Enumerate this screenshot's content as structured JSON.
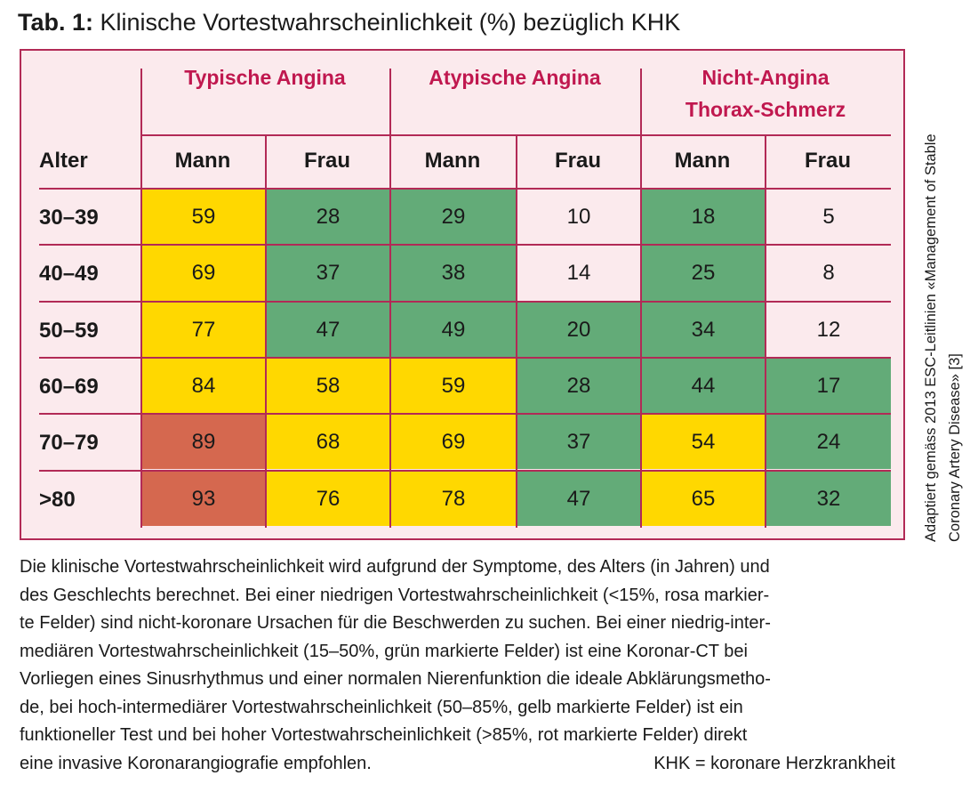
{
  "title": {
    "prefix": "Tab. 1:",
    "text": "Klinische Vortestwahrscheinlichkeit (%) bezüglich KHK"
  },
  "colors": {
    "low": "#fbeaed",
    "intermediate_low": "#63ab78",
    "intermediate_high": "#ffd800",
    "high": "#d5684f",
    "border": "#b22a56",
    "header_text": "#c0184f"
  },
  "table": {
    "groups": [
      {
        "label_line1": "Typische Angina",
        "label_line2": ""
      },
      {
        "label_line1": "Atypische Angina",
        "label_line2": ""
      },
      {
        "label_line1": "Nicht-Angina",
        "label_line2": "Thorax-Schmerz"
      }
    ],
    "row_header": "Alter",
    "columns": [
      "Mann",
      "Frau",
      "Mann",
      "Frau",
      "Mann",
      "Frau"
    ],
    "rows": [
      {
        "age": "30–39",
        "values": [
          "59",
          "28",
          "29",
          "10",
          "18",
          "5"
        ],
        "categories": [
          "intermediate_high",
          "intermediate_low",
          "intermediate_low",
          "low",
          "intermediate_low",
          "low"
        ]
      },
      {
        "age": "40–49",
        "values": [
          "69",
          "37",
          "38",
          "14",
          "25",
          "8"
        ],
        "categories": [
          "intermediate_high",
          "intermediate_low",
          "intermediate_low",
          "low",
          "intermediate_low",
          "low"
        ]
      },
      {
        "age": "50–59",
        "values": [
          "77",
          "47",
          "49",
          "20",
          "34",
          "12"
        ],
        "categories": [
          "intermediate_high",
          "intermediate_low",
          "intermediate_low",
          "intermediate_low",
          "intermediate_low",
          "low"
        ]
      },
      {
        "age": "60–69",
        "values": [
          "84",
          "58",
          "59",
          "28",
          "44",
          "17"
        ],
        "categories": [
          "intermediate_high",
          "intermediate_high",
          "intermediate_high",
          "intermediate_low",
          "intermediate_low",
          "intermediate_low"
        ]
      },
      {
        "age": "70–79",
        "values": [
          "89",
          "68",
          "69",
          "37",
          "54",
          "24"
        ],
        "categories": [
          "high",
          "intermediate_high",
          "intermediate_high",
          "intermediate_low",
          "intermediate_high",
          "intermediate_low"
        ]
      },
      {
        "age": ">80",
        "values": [
          "93",
          "76",
          "78",
          "47",
          "65",
          "32"
        ],
        "categories": [
          "high",
          "intermediate_high",
          "intermediate_high",
          "intermediate_low",
          "intermediate_high",
          "intermediate_low"
        ]
      }
    ]
  },
  "caption": {
    "lines": [
      "Die klinische Vortestwahrscheinlichkeit wird aufgrund der Symptome, des Alters (in Jahren) und",
      "des Geschlechts berechnet. Bei einer niedrigen Vortestwahrscheinlichkeit (<15%, rosa markier-",
      "te Felder) sind nicht-koronare Ursachen für die Beschwerden zu suchen. Bei einer niedrig-inter-",
      "mediären Vortestwahrscheinlichkeit (15–50%, grün markierte Felder) ist eine Koronar-CT bei",
      "Vorliegen eines Sinusrhythmus und einer normalen Nierenfunktion die ideale Abklärungsmetho-",
      "de, bei hoch-intermediärer Vortestwahrscheinlichkeit (50–85%, gelb markierte Felder) ist ein",
      "funktioneller Test und bei hoher Vortestwahrscheinlichkeit (>85%, rot markierte Felder) direkt"
    ],
    "last_line": "eine invasive Koronarangiografie empfohlen.",
    "abbreviation": "KHK = koronare Herzkrankheit"
  },
  "side_note": {
    "line1": "Adaptiert gemäss 2013 ESC-Leitlinien «Management of Stable",
    "line2": "Coronary Artery Disease» [3]"
  }
}
